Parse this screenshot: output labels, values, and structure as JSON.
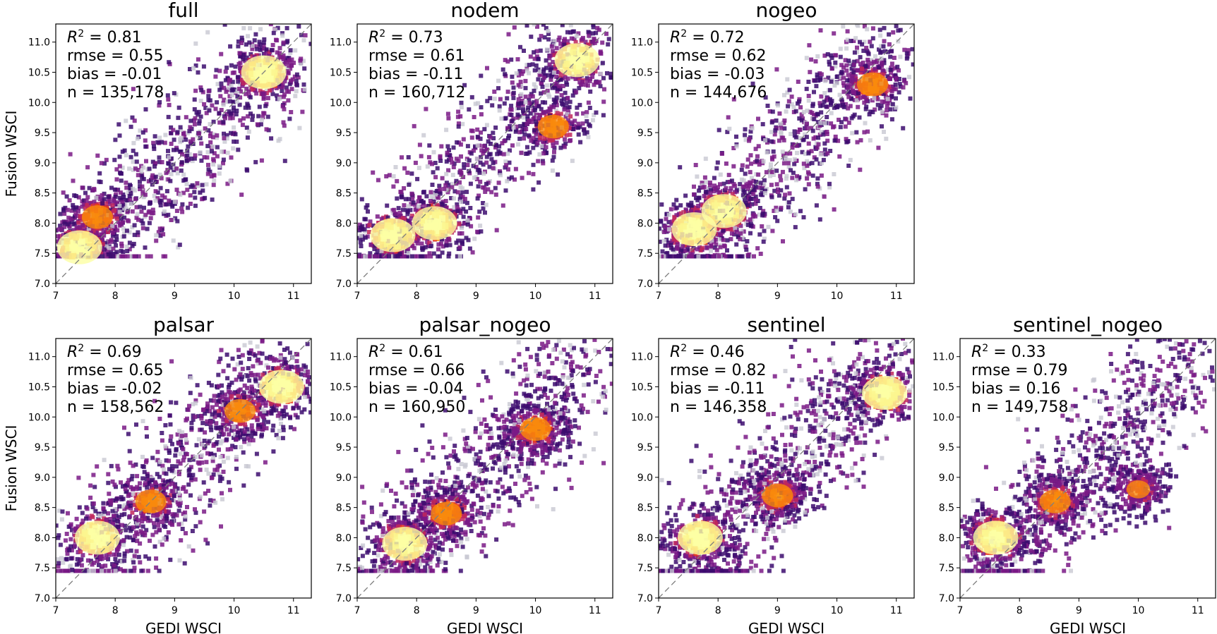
{
  "figure": {
    "xlabel": "GEDI WSCI",
    "ylabel": "Fusion WSCI"
  },
  "chart_data": [
    {
      "type": "heatmap",
      "title": "full",
      "xlabel": "",
      "ylabel": "Fusion WSCI",
      "xlim": [
        7.0,
        11.3
      ],
      "ylim": [
        7.0,
        11.3
      ],
      "x_ticks": [
        "7",
        "8",
        "9",
        "10",
        "11"
      ],
      "y_ticks": [
        "7.0",
        "7.5",
        "8.0",
        "8.5",
        "9.0",
        "9.5",
        "10.0",
        "10.5",
        "11.0"
      ],
      "reference_line": "1:1 dashed",
      "stats": {
        "r2": "0.81",
        "rmse": "0.55",
        "bias": "-0.01",
        "n": "135,178"
      },
      "density_hotspots": [
        {
          "x": 7.4,
          "y": 7.6,
          "intensity": "high"
        },
        {
          "x": 7.7,
          "y": 8.1,
          "intensity": "medium"
        },
        {
          "x": 10.5,
          "y": 10.5,
          "intensity": "high"
        }
      ]
    },
    {
      "type": "heatmap",
      "title": "nodem",
      "xlabel": "",
      "ylabel": "",
      "xlim": [
        7.0,
        11.3
      ],
      "ylim": [
        7.0,
        11.3
      ],
      "x_ticks": [
        "7",
        "8",
        "9",
        "10",
        "11"
      ],
      "y_ticks": [
        "7.0",
        "7.5",
        "8.0",
        "8.5",
        "9.0",
        "9.5",
        "10.0",
        "10.5",
        "11.0"
      ],
      "reference_line": "1:1 dashed",
      "stats": {
        "r2": "0.73",
        "rmse": "0.61",
        "bias": "-0.11",
        "n": "160,712"
      },
      "density_hotspots": [
        {
          "x": 7.6,
          "y": 7.8,
          "intensity": "high"
        },
        {
          "x": 8.3,
          "y": 8.0,
          "intensity": "high"
        },
        {
          "x": 10.3,
          "y": 9.6,
          "intensity": "medium"
        },
        {
          "x": 10.7,
          "y": 10.7,
          "intensity": "high"
        }
      ]
    },
    {
      "type": "heatmap",
      "title": "nogeo",
      "xlabel": "",
      "ylabel": "",
      "xlim": [
        7.0,
        11.3
      ],
      "ylim": [
        7.0,
        11.3
      ],
      "x_ticks": [
        "7",
        "8",
        "9",
        "10",
        "11"
      ],
      "y_ticks": [
        "7.0",
        "7.5",
        "8.0",
        "8.5",
        "9.0",
        "9.5",
        "10.0",
        "10.5",
        "11.0"
      ],
      "reference_line": "1:1 dashed",
      "stats": {
        "r2": "0.72",
        "rmse": "0.62",
        "bias": "-0.03",
        "n": "144,676"
      },
      "density_hotspots": [
        {
          "x": 7.6,
          "y": 7.9,
          "intensity": "high"
        },
        {
          "x": 8.1,
          "y": 8.2,
          "intensity": "high"
        },
        {
          "x": 10.6,
          "y": 10.3,
          "intensity": "medium"
        }
      ]
    },
    {
      "type": "heatmap",
      "title": "palsar",
      "xlabel": "GEDI WSCI",
      "ylabel": "Fusion WSCI",
      "xlim": [
        7.0,
        11.3
      ],
      "ylim": [
        7.0,
        11.3
      ],
      "x_ticks": [
        "7",
        "8",
        "9",
        "10",
        "11"
      ],
      "y_ticks": [
        "7.0",
        "7.5",
        "8.0",
        "8.5",
        "9.0",
        "9.5",
        "10.0",
        "10.5",
        "11.0"
      ],
      "reference_line": "1:1 dashed",
      "stats": {
        "r2": "0.69",
        "rmse": "0.65",
        "bias": "-0.02",
        "n": "158,562"
      },
      "density_hotspots": [
        {
          "x": 7.7,
          "y": 8.0,
          "intensity": "high"
        },
        {
          "x": 8.6,
          "y": 8.6,
          "intensity": "medium"
        },
        {
          "x": 10.1,
          "y": 10.1,
          "intensity": "medium"
        },
        {
          "x": 10.8,
          "y": 10.5,
          "intensity": "high"
        }
      ]
    },
    {
      "type": "heatmap",
      "title": "palsar_nogeo",
      "xlabel": "GEDI WSCI",
      "ylabel": "",
      "xlim": [
        7.0,
        11.3
      ],
      "ylim": [
        7.0,
        11.3
      ],
      "x_ticks": [
        "7",
        "8",
        "9",
        "10",
        "11"
      ],
      "y_ticks": [
        "7.0",
        "7.5",
        "8.0",
        "8.5",
        "9.0",
        "9.5",
        "10.0",
        "10.5",
        "11.0"
      ],
      "reference_line": "1:1 dashed",
      "stats": {
        "r2": "0.61",
        "rmse": "0.66",
        "bias": "-0.04",
        "n": "160,950"
      },
      "density_hotspots": [
        {
          "x": 7.8,
          "y": 7.9,
          "intensity": "high"
        },
        {
          "x": 8.5,
          "y": 8.4,
          "intensity": "medium"
        },
        {
          "x": 10.0,
          "y": 9.8,
          "intensity": "medium"
        }
      ]
    },
    {
      "type": "heatmap",
      "title": "sentinel",
      "xlabel": "GEDI WSCI",
      "ylabel": "",
      "xlim": [
        7.0,
        11.3
      ],
      "ylim": [
        7.0,
        11.3
      ],
      "x_ticks": [
        "7",
        "8",
        "9",
        "10",
        "11"
      ],
      "y_ticks": [
        "7.0",
        "7.5",
        "8.0",
        "8.5",
        "9.0",
        "9.5",
        "10.0",
        "10.5",
        "11.0"
      ],
      "reference_line": "1:1 dashed",
      "stats": {
        "r2": "0.46",
        "rmse": "0.82",
        "bias": "-0.11",
        "n": "146,358"
      },
      "density_hotspots": [
        {
          "x": 7.7,
          "y": 8.0,
          "intensity": "high"
        },
        {
          "x": 9.0,
          "y": 8.7,
          "intensity": "medium"
        },
        {
          "x": 10.8,
          "y": 10.4,
          "intensity": "high"
        }
      ]
    },
    {
      "type": "heatmap",
      "title": "sentinel_nogeo",
      "xlabel": "GEDI WSCI",
      "ylabel": "",
      "xlim": [
        7.0,
        11.3
      ],
      "ylim": [
        7.0,
        11.3
      ],
      "x_ticks": [
        "7",
        "8",
        "9",
        "10",
        "11"
      ],
      "y_ticks": [
        "7.0",
        "7.5",
        "8.0",
        "8.5",
        "9.0",
        "9.5",
        "10.0",
        "10.5",
        "11.0"
      ],
      "reference_line": "1:1 dashed",
      "stats": {
        "r2": "0.33",
        "rmse": "0.79",
        "bias": "0.16",
        "n": "149,758"
      },
      "density_hotspots": [
        {
          "x": 7.6,
          "y": 8.0,
          "intensity": "high"
        },
        {
          "x": 8.6,
          "y": 8.6,
          "intensity": "medium"
        },
        {
          "x": 10.0,
          "y": 8.8,
          "intensity": "low"
        }
      ]
    }
  ],
  "colors": {
    "colormap": [
      "#c8c8d2",
      "#3c0c6e",
      "#7a1a86",
      "#c0275c",
      "#e8391c",
      "#f98a0c",
      "#f7d13d",
      "#fcffa4"
    ],
    "frame": "#000000",
    "reference_line": "#7f7f7f"
  }
}
